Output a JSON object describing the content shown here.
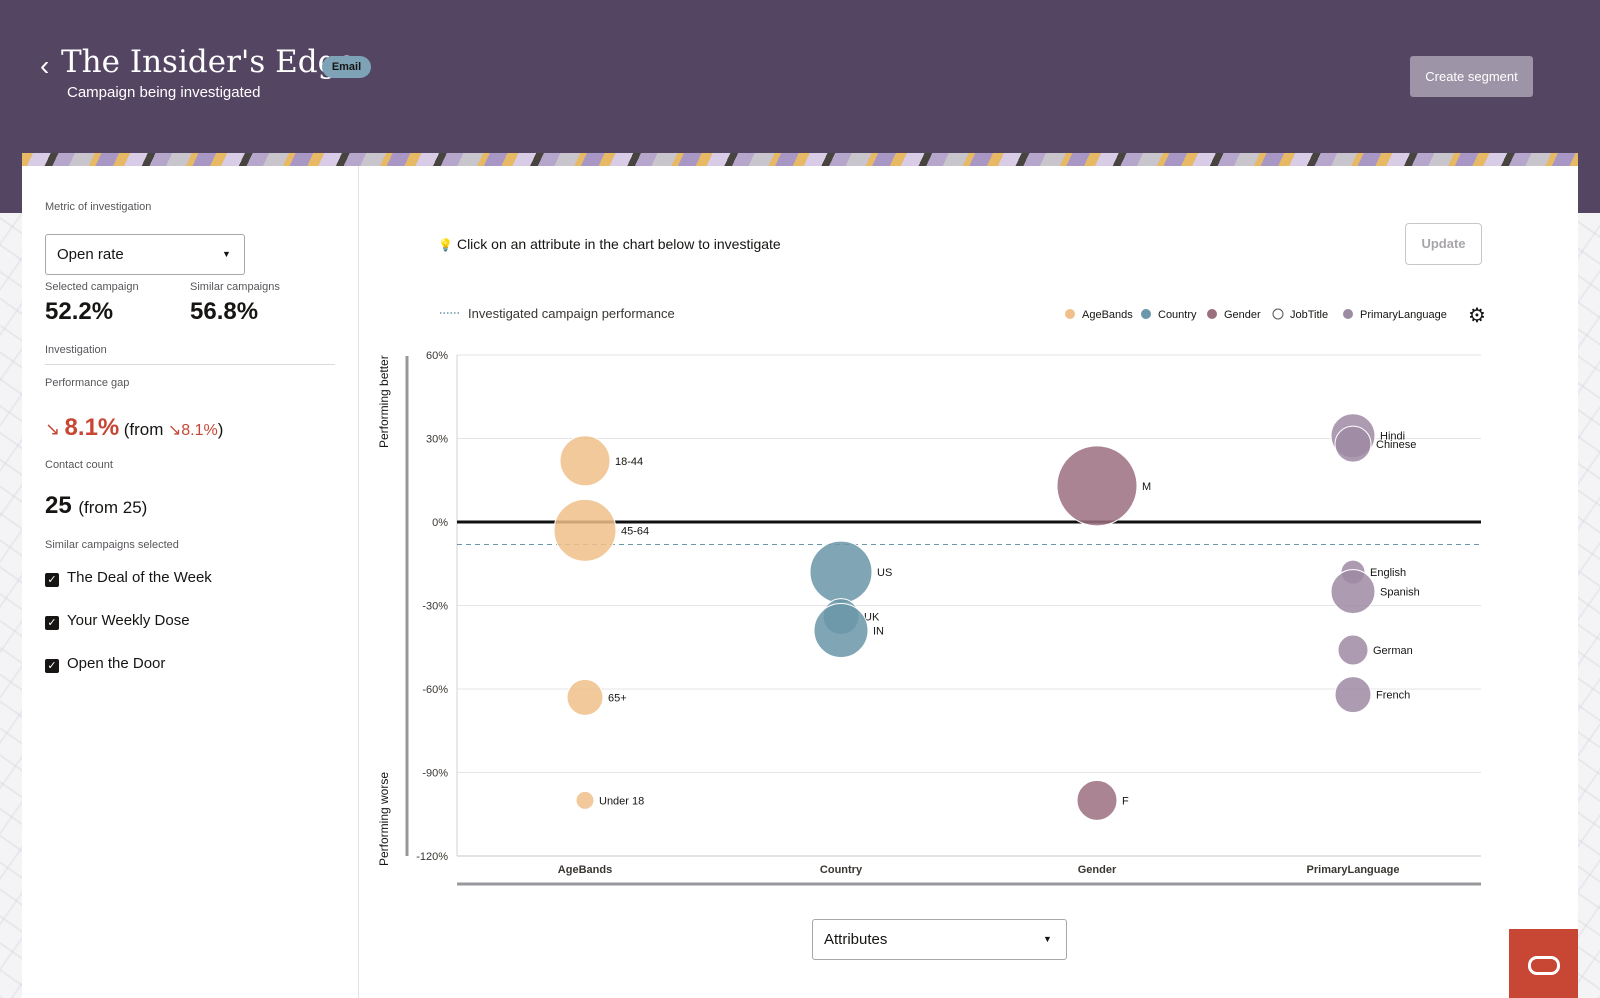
{
  "header": {
    "title": "The Insider's Edge",
    "badge": "Email",
    "subtitle": "Campaign being investigated",
    "create_segment": "Create segment"
  },
  "left": {
    "metric_label": "Metric of investigation",
    "metric_value": "Open rate",
    "selected_label": "Selected campaign",
    "selected_value": "52.2%",
    "similar_label": "Similar campaigns",
    "similar_value": "56.8%",
    "investigation_label": "Investigation",
    "gap_label": "Performance gap",
    "gap_value": "8.1%",
    "gap_from_prefix": "(from",
    "gap_from_value": "8.1%",
    "gap_from_suffix": ")",
    "contact_label": "Contact count",
    "contact_value": "25",
    "contact_from": "(from 25)",
    "similar_selected_label": "Similar campaigns selected",
    "campaigns": [
      "The Deal of the Week",
      "Your Weekly Dose",
      "Open the Door"
    ]
  },
  "hint": "Click on an attribute in the chart below to investigate",
  "update": "Update",
  "attributes_select": "Attributes",
  "colors": {
    "header_bg": "#544563",
    "accent_red": "#c74634",
    "AgeBands": "#f0c08a",
    "Country": "#6a97a9",
    "Gender": "#9b6f7f",
    "JobTitle": "#ffffff",
    "PrimaryLanguage": "#9d8aa3"
  },
  "chart_data": {
    "type": "scatter",
    "baseline_label": "Investigated campaign performance",
    "legend": [
      "AgeBands",
      "Country",
      "Gender",
      "JobTitle",
      "PrimaryLanguage"
    ],
    "legend_position": "top-right",
    "ylabel_top": "Performing better",
    "ylabel_bottom": "Performing worse",
    "ylim": [
      -120,
      60
    ],
    "yticks": [
      "60%",
      "30%",
      "0%",
      "-30%",
      "-60%",
      "-90%",
      "-120%"
    ],
    "ytick_values": [
      60,
      30,
      0,
      -30,
      -60,
      -90,
      -120
    ],
    "categories": [
      "AgeBands",
      "Country",
      "Gender",
      "PrimaryLanguage"
    ],
    "similar_baseline": -8.1,
    "points": [
      {
        "cat": "AgeBands",
        "label": "18-44",
        "y": 22,
        "size": 25
      },
      {
        "cat": "AgeBands",
        "label": "45-64",
        "y": -3,
        "size": 31
      },
      {
        "cat": "AgeBands",
        "label": "65+",
        "y": -63,
        "size": 18
      },
      {
        "cat": "AgeBands",
        "label": "Under 18",
        "y": -100,
        "size": 9
      },
      {
        "cat": "Country",
        "label": "US",
        "y": -18,
        "size": 31
      },
      {
        "cat": "Country",
        "label": "UK",
        "y": -34,
        "size": 18
      },
      {
        "cat": "Country",
        "label": "IN",
        "y": -39,
        "size": 27
      },
      {
        "cat": "Gender",
        "label": "M",
        "y": 13,
        "size": 40
      },
      {
        "cat": "Gender",
        "label": "F",
        "y": -100,
        "size": 20
      },
      {
        "cat": "PrimaryLanguage",
        "label": "Hindi",
        "y": 31,
        "size": 22
      },
      {
        "cat": "PrimaryLanguage",
        "label": "Chinese",
        "y": 28,
        "size": 18
      },
      {
        "cat": "PrimaryLanguage",
        "label": "English",
        "y": -18,
        "size": 12
      },
      {
        "cat": "PrimaryLanguage",
        "label": "Spanish",
        "y": -25,
        "size": 22
      },
      {
        "cat": "PrimaryLanguage",
        "label": "German",
        "y": -46,
        "size": 15
      },
      {
        "cat": "PrimaryLanguage",
        "label": "French",
        "y": -62,
        "size": 18
      }
    ]
  }
}
